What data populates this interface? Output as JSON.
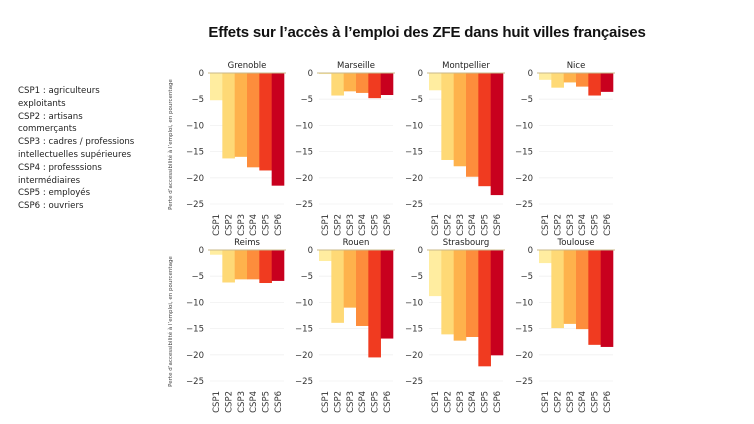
{
  "title": "Effets sur l’accès à l’emploi des ZFE dans huit villes françaises",
  "legend": [
    "CSP1 : agriculteurs",
    "exploitants",
    "CSP2 : artisans",
    "commerçants",
    "CSP3 : cadres / professions",
    "intellectuelles supérieures",
    "CSP4 : professsions",
    "intermédiaires",
    "CSP5 : employés",
    "CSP6 : ouvriers"
  ],
  "colors": [
    "#ffeda0",
    "#fed976",
    "#feb24c",
    "#fd8d3c",
    "#f03b20",
    "#c8001e"
  ],
  "chart_data": {
    "type": "bar",
    "title": "Effets sur l’accès à l’emploi des ZFE dans huit villes françaises",
    "ylabel": "Perte d’accessibilité à l’emploi, en pourcentage",
    "categories": [
      "CSP1",
      "CSP2",
      "CSP3",
      "CSP4",
      "CSP5",
      "CSP6"
    ],
    "ylim": [
      -25,
      0
    ],
    "yticks": [
      0,
      -5,
      -10,
      -15,
      -20,
      -25
    ],
    "grid": true,
    "panels": [
      {
        "name": "Grenoble",
        "values": [
          -5.2,
          -16.3,
          -16.0,
          -18.0,
          -18.6,
          -21.5
        ]
      },
      {
        "name": "Marseille",
        "values": [
          -0.2,
          -4.3,
          -3.5,
          -3.8,
          -4.8,
          -4.2
        ]
      },
      {
        "name": "Montpellier",
        "values": [
          -3.3,
          -16.6,
          -17.8,
          -19.8,
          -21.6,
          -23.3
        ]
      },
      {
        "name": "Nice",
        "values": [
          -1.3,
          -2.8,
          -1.8,
          -2.6,
          -4.3,
          -3.6
        ]
      },
      {
        "name": "Reims",
        "values": [
          -0.9,
          -6.2,
          -5.6,
          -5.6,
          -6.3,
          -5.9
        ]
      },
      {
        "name": "Rouen",
        "values": [
          -2.1,
          -13.9,
          -11.0,
          -14.5,
          -20.5,
          -16.9
        ]
      },
      {
        "name": "Strasbourg",
        "values": [
          -8.8,
          -16.1,
          -17.3,
          -16.6,
          -22.2,
          -20.1
        ]
      },
      {
        "name": "Toulouse",
        "values": [
          -2.5,
          -14.9,
          -14.1,
          -15.1,
          -18.1,
          -18.5
        ]
      }
    ]
  }
}
